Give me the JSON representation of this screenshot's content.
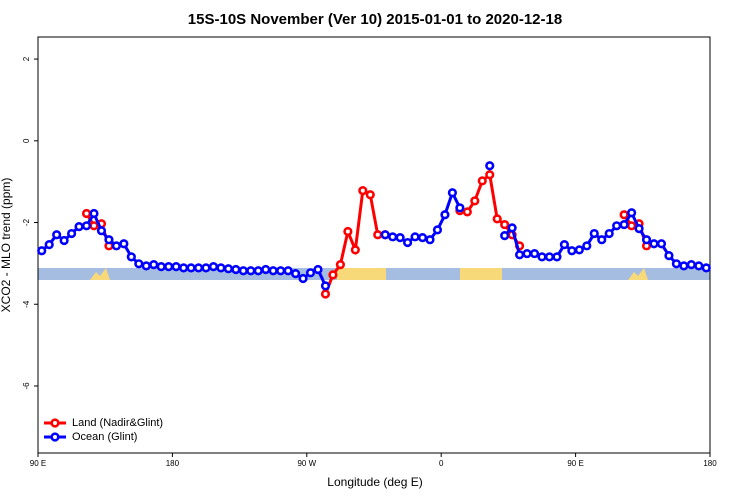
{
  "chart_data": {
    "type": "line",
    "title": "15S-10S November (Ver 10)   2015-01-01 to 2020-12-18",
    "x_label": "Longitude (deg E)",
    "y_label": "XCO2 - MLO trend (ppm)",
    "xlim": [
      90,
      540
    ],
    "ylim": [
      -7.64,
      2.54
    ],
    "xticks": [
      {
        "value": 90,
        "label": "90 E"
      },
      180,
      {
        "value": 270,
        "label": "90 W"
      },
      {
        "value": 360,
        "label": "0"
      },
      {
        "value": 450,
        "label": "90 E"
      },
      {
        "value": 540,
        "label": "180"
      }
    ],
    "yticks": [
      2,
      0,
      -2,
      -4,
      -6
    ],
    "legend": "bottom-left",
    "x": [
      92.5,
      97.5,
      102.5,
      107.5,
      112.5,
      117.5,
      122.5,
      127.5,
      132.5,
      137.5,
      142.5,
      147.5,
      152.5,
      157.5,
      162.5,
      167.5,
      172.5,
      177.5,
      182.5,
      187.5,
      192.5,
      197.5,
      202.5,
      207.5,
      212.5,
      217.5,
      222.5,
      227.5,
      232.5,
      237.5,
      242.5,
      247.5,
      252.5,
      257.5,
      262.5,
      267.5,
      272.5,
      277.5,
      282.5,
      287.5,
      292.5,
      297.5,
      302.5,
      307.5,
      312.5,
      317.5,
      322.5,
      327.5,
      332.5,
      337.5,
      342.5,
      347.5,
      352.5,
      357.5,
      362.5,
      367.5,
      372.5,
      377.5,
      382.5,
      387.5,
      392.5,
      397.5,
      402.5,
      407.5,
      412.5,
      417.5,
      422.5,
      427.5,
      432.5,
      437.5,
      442.5,
      447.5,
      452.5,
      457.5,
      462.5,
      467.5,
      472.5,
      477.5,
      482.5,
      487.5,
      492.5,
      497.5,
      502.5,
      507.5,
      512.5,
      517.5,
      522.5,
      527.5,
      532.5,
      537.5
    ],
    "series": [
      {
        "name": "Land (Nadir&Glint)",
        "color": "#ff0000",
        "values": [
          null,
          null,
          null,
          null,
          null,
          null,
          -1.78,
          -2.08,
          -2.03,
          -2.57,
          null,
          null,
          null,
          null,
          null,
          null,
          null,
          null,
          null,
          null,
          null,
          null,
          null,
          null,
          null,
          null,
          null,
          null,
          null,
          null,
          null,
          null,
          null,
          null,
          null,
          null,
          null,
          null,
          -3.75,
          -3.28,
          -3.03,
          -2.22,
          -2.67,
          -1.22,
          -1.32,
          -2.3,
          -2.3,
          null,
          null,
          null,
          null,
          null,
          null,
          null,
          null,
          null,
          -1.71,
          -1.74,
          -1.47,
          -0.98,
          -0.83,
          -1.91,
          -2.05,
          -2.3,
          -2.57,
          null,
          null,
          null,
          null,
          null,
          null,
          null,
          null,
          null,
          null,
          null,
          null,
          null,
          -1.81,
          -2.08,
          -2.03,
          -2.57,
          null,
          null,
          null,
          null,
          null,
          null,
          null,
          null
        ]
      },
      {
        "name": "Ocean (Glint)",
        "color": "#0000ff",
        "values": [
          -2.69,
          -2.54,
          -2.3,
          -2.44,
          -2.27,
          -2.1,
          -2.08,
          -1.78,
          -2.2,
          -2.42,
          -2.57,
          -2.52,
          -2.84,
          -3.01,
          -3.06,
          -3.03,
          -3.08,
          -3.08,
          -3.08,
          -3.11,
          -3.11,
          -3.11,
          -3.11,
          -3.08,
          -3.11,
          -3.13,
          -3.15,
          -3.18,
          -3.18,
          -3.18,
          -3.15,
          -3.18,
          -3.18,
          -3.18,
          -3.25,
          -3.37,
          -3.23,
          -3.15,
          -3.55,
          null,
          null,
          null,
          null,
          null,
          null,
          null,
          -2.3,
          -2.35,
          -2.37,
          -2.49,
          -2.35,
          -2.37,
          -2.42,
          -2.18,
          -1.81,
          -1.27,
          -1.64,
          null,
          null,
          null,
          -0.61,
          null,
          -2.32,
          -2.13,
          -2.79,
          -2.76,
          -2.76,
          -2.84,
          -2.84,
          -2.84,
          -2.54,
          -2.69,
          -2.67,
          -2.57,
          -2.27,
          -2.42,
          -2.27,
          -2.08,
          -2.05,
          -1.76,
          -2.15,
          -2.42,
          -2.52,
          -2.52,
          -2.81,
          -3.01,
          -3.06,
          -3.03,
          -3.06,
          -3.11
        ]
      }
    ]
  }
}
